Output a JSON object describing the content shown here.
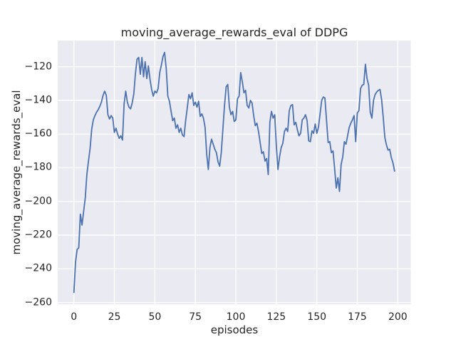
{
  "figure": {
    "title": "moving_average_rewards_eval of DDPG"
  },
  "style": {
    "figure_bg": "#ffffff",
    "axes_bg": "#eaeaf2",
    "grid_color": "#ffffff",
    "text_color": "#262626",
    "line_color": "#4c72b0"
  },
  "chart_data": {
    "type": "line",
    "title": "moving_average_rewards_eval of DDPG",
    "xlabel": "episodes",
    "ylabel": "moving_average_rewards_eval",
    "x_ticks": [
      0,
      25,
      50,
      75,
      100,
      125,
      150,
      175,
      200
    ],
    "y_ticks": [
      -120,
      -140,
      -160,
      -180,
      -200,
      -220,
      -240,
      -260
    ],
    "xlim": [
      -10,
      208
    ],
    "ylim": [
      -261,
      -104.5
    ],
    "grid": true,
    "legend": "none",
    "series": [
      {
        "name": "moving_average_rewards_eval",
        "color": "#4c72b0",
        "x_start": 0,
        "x_step": 1,
        "values": [
          -254,
          -236,
          -228.5,
          -227.5,
          -207.5,
          -214,
          -206,
          -198,
          -184,
          -176,
          -168.5,
          -157,
          -151.5,
          -149,
          -147,
          -145.5,
          -143.5,
          -141,
          -137,
          -134.5,
          -137,
          -148.5,
          -151,
          -149,
          -150.5,
          -159,
          -156.5,
          -160,
          -162.5,
          -161,
          -163.5,
          -142,
          -134.5,
          -141,
          -144,
          -145,
          -141.5,
          -136,
          -124,
          -115.5,
          -114.5,
          -124.5,
          -114.5,
          -126,
          -117,
          -127,
          -119.5,
          -127.5,
          -133.5,
          -137.5,
          -134.5,
          -135.5,
          -133,
          -123.5,
          -119,
          -114,
          -111.5,
          -121,
          -137.5,
          -140.5,
          -146.5,
          -152,
          -150.5,
          -156.5,
          -154.5,
          -159,
          -156.5,
          -160.5,
          -161.5,
          -152,
          -144.5,
          -136.5,
          -139,
          -135.5,
          -143,
          -141,
          -144,
          -140.5,
          -149.5,
          -148,
          -150.5,
          -156,
          -172,
          -181,
          -168,
          -163,
          -166,
          -169,
          -171,
          -176.5,
          -179,
          -171,
          -157,
          -143,
          -132,
          -130.5,
          -144,
          -148.5,
          -146.5,
          -152.5,
          -151.5,
          -139,
          -137.5,
          -123.5,
          -129,
          -135.5,
          -134,
          -143,
          -144.5,
          -140,
          -141.5,
          -149,
          -155,
          -153.5,
          -158.5,
          -165,
          -171.5,
          -170.5,
          -176,
          -174.5,
          -184,
          -153,
          -146.5,
          -150.5,
          -148.5,
          -167,
          -181,
          -173.5,
          -168,
          -165.5,
          -158.5,
          -156.5,
          -158.5,
          -146,
          -143,
          -142.5,
          -154.5,
          -153,
          -157.5,
          -161,
          -159.5,
          -151.5,
          -150.5,
          -148.5,
          -152,
          -164,
          -164.5,
          -158,
          -159.5,
          -154,
          -159.5,
          -156,
          -148,
          -140,
          -138,
          -138.5,
          -152,
          -165,
          -164.5,
          -171,
          -170,
          -180.5,
          -192,
          -186,
          -194,
          -178,
          -173.5,
          -164.5,
          -166,
          -161,
          -156,
          -153.5,
          -151.5,
          -149,
          -164.5,
          -147.5,
          -146,
          -133,
          -131,
          -130.5,
          -118.5,
          -127,
          -131,
          -147,
          -150.5,
          -140,
          -136.5,
          -135,
          -134,
          -133.5,
          -139.5,
          -150,
          -162,
          -166.5,
          -169.5,
          -169,
          -174,
          -177,
          -182
        ]
      }
    ]
  }
}
